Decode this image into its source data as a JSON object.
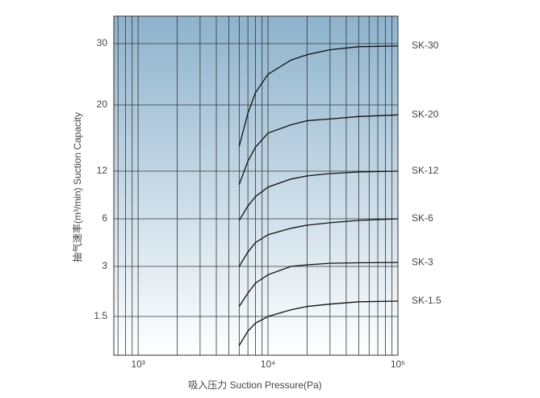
{
  "chart_data": {
    "type": "line",
    "xlabel": "吸入压力 Suction Pressure(Pa)",
    "ylabel": "抽气速率(m³/min) Suction Capacity",
    "x": [
      6000,
      7000,
      8000,
      10000,
      15000,
      20000,
      30000,
      50000,
      100000
    ],
    "xscale": "log",
    "xlim": [
      650,
      100000
    ],
    "xticks": [
      {
        "value": 1000,
        "label": "10³"
      },
      {
        "value": 10000,
        "label": "10⁴"
      },
      {
        "value": 100000,
        "label": "10⁵"
      }
    ],
    "xminorticks": [
      700,
      800,
      900,
      2000,
      3000,
      4000,
      5000,
      6000,
      7000,
      8000,
      9000,
      20000,
      30000,
      40000,
      50000,
      60000,
      70000,
      80000,
      90000
    ],
    "ylim": [
      0.34,
      34.5
    ],
    "yticks": [
      1.5,
      3,
      6,
      12,
      20,
      30
    ],
    "grid": true,
    "series": [
      {
        "name": "SK-30",
        "color": "#111111",
        "values": [
          15,
          19,
          22,
          25,
          27.3,
          28.2,
          29,
          29.5,
          29.6
        ]
      },
      {
        "name": "SK-20",
        "color": "#111111",
        "values": [
          10.3,
          13.2,
          14.9,
          16.6,
          17.6,
          18.1,
          18.3,
          18.6,
          18.8
        ]
      },
      {
        "name": "SK-12",
        "color": "#111111",
        "values": [
          5.9,
          7.6,
          8.8,
          10,
          11,
          11.4,
          11.7,
          11.9,
          12
        ]
      },
      {
        "name": "SK-6",
        "color": "#111111",
        "values": [
          3,
          3.9,
          4.5,
          5,
          5.4,
          5.6,
          5.75,
          5.9,
          6
        ]
      },
      {
        "name": "SK-3",
        "color": "#111111",
        "values": [
          1.8,
          2.2,
          2.5,
          2.75,
          3,
          3.1,
          3.2,
          3.23,
          3.25
        ]
      },
      {
        "name": "SK-1.5",
        "color": "#111111",
        "values": [
          0.63,
          1.06,
          1.3,
          1.5,
          1.7,
          1.8,
          1.87,
          1.94,
          1.96
        ]
      }
    ]
  }
}
